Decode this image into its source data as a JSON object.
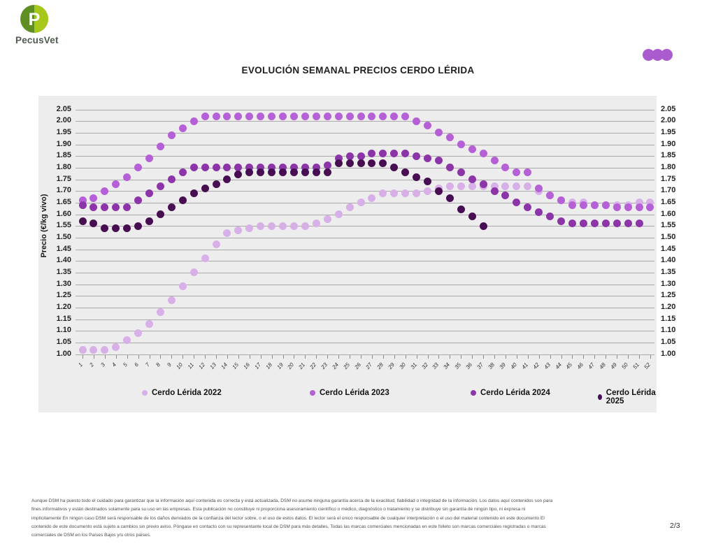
{
  "header": {
    "brand": "PecusVet"
  },
  "title": "EVOLUCIÓN SEMANAL PRECIOS CERDO LÉRIDA",
  "chart_data": {
    "type": "scatter",
    "title": "EVOLUCIÓN SEMANAL PRECIOS CERDO LÉRIDA",
    "xlabel": "",
    "ylabel": "Precio (€/kg vivo)",
    "ylim": [
      1.0,
      2.05
    ],
    "yticks": [
      "2.05",
      "2.00",
      "1.95",
      "1.90",
      "1.85",
      "1.80",
      "1.75",
      "1.70",
      "1.65",
      "1.60",
      "1.55",
      "1.50",
      "1.45",
      "1.40",
      "1.35",
      "1.30",
      "1.25",
      "1.20",
      "1.15",
      "1.10",
      "1.05",
      "1.00"
    ],
    "grid": true,
    "legend_position": "bottom",
    "x": [
      1,
      2,
      3,
      4,
      5,
      6,
      7,
      8,
      9,
      10,
      11,
      12,
      13,
      14,
      15,
      16,
      17,
      18,
      19,
      20,
      21,
      22,
      23,
      24,
      25,
      26,
      27,
      28,
      29,
      30,
      31,
      32,
      33,
      34,
      35,
      36,
      37,
      38,
      39,
      40,
      41,
      42,
      43,
      44,
      45,
      46,
      47,
      48,
      49,
      50,
      51,
      52
    ],
    "series": [
      {
        "name": "Cerdo Lérida 2022",
        "color": "#d8b0e8",
        "values": [
          1.02,
          1.02,
          1.02,
          1.03,
          1.06,
          1.09,
          1.13,
          1.18,
          1.23,
          1.29,
          1.35,
          1.41,
          1.47,
          1.52,
          1.53,
          1.54,
          1.55,
          1.55,
          1.55,
          1.55,
          1.55,
          1.56,
          1.58,
          1.6,
          1.63,
          1.65,
          1.67,
          1.69,
          1.69,
          1.69,
          1.69,
          1.7,
          1.71,
          1.72,
          1.72,
          1.72,
          1.72,
          1.72,
          1.72,
          1.72,
          1.72,
          1.7,
          1.68,
          1.66,
          1.65,
          1.65,
          1.64,
          1.64,
          1.64,
          1.64,
          1.65,
          1.65
        ]
      },
      {
        "name": "Cerdo Lérida 2023",
        "color": "#b560d6",
        "values": [
          1.66,
          1.67,
          1.7,
          1.73,
          1.76,
          1.8,
          1.84,
          1.89,
          1.94,
          1.97,
          2.0,
          2.02,
          2.02,
          2.02,
          2.02,
          2.02,
          2.02,
          2.02,
          2.02,
          2.02,
          2.02,
          2.02,
          2.02,
          2.02,
          2.02,
          2.02,
          2.02,
          2.02,
          2.02,
          2.02,
          2.0,
          1.98,
          1.95,
          1.93,
          1.9,
          1.88,
          1.86,
          1.83,
          1.8,
          1.78,
          1.78,
          1.71,
          1.68,
          1.66,
          1.64,
          1.64,
          1.64,
          1.64,
          1.63,
          1.63,
          1.63,
          1.63
        ]
      },
      {
        "name": "Cerdo Lérida 2024",
        "color": "#8c35a8",
        "values": [
          1.64,
          1.63,
          1.63,
          1.63,
          1.63,
          1.66,
          1.69,
          1.72,
          1.75,
          1.78,
          1.8,
          1.8,
          1.8,
          1.8,
          1.8,
          1.8,
          1.8,
          1.8,
          1.8,
          1.8,
          1.8,
          1.8,
          1.81,
          1.84,
          1.85,
          1.85,
          1.86,
          1.86,
          1.86,
          1.86,
          1.85,
          1.84,
          1.83,
          1.8,
          1.78,
          1.75,
          1.73,
          1.7,
          1.68,
          1.65,
          1.63,
          1.61,
          1.59,
          1.57,
          1.56,
          1.56,
          1.56,
          1.56,
          1.56,
          1.56,
          1.56,
          null
        ]
      },
      {
        "name": "Cerdo Lérida 2025",
        "color": "#470f52",
        "values": [
          1.57,
          1.56,
          1.54,
          1.54,
          1.54,
          1.55,
          1.57,
          1.6,
          1.63,
          1.66,
          1.69,
          1.71,
          1.73,
          1.75,
          1.77,
          1.78,
          1.78,
          1.78,
          1.78,
          1.78,
          1.78,
          1.78,
          1.78,
          1.82,
          1.82,
          1.82,
          1.82,
          1.82,
          1.8,
          1.78,
          1.76,
          1.74,
          1.7,
          1.67,
          1.62,
          1.59,
          1.55,
          null,
          null,
          null,
          null,
          null,
          null,
          null,
          null,
          null,
          null,
          null,
          null,
          null,
          null,
          null
        ]
      }
    ]
  },
  "footer": {
    "lines": [
      "Aunque DSM ha puesto todo el cuidado para garantizar que la información aquí contenida es correcta y está actualizada, DSM no asume ninguna garantía acerca de la exactitud, fiabilidad o integridad de la información. Los datos aquí contenidos son para",
      "fines informativos y están destinados solamente para su uso en las empresas. Esta publicación no constituye ni proporciona asesoramiento científico o médico, diagnóstico o tratamiento y se distribuye sin garantía de ningún tipo, ni expresa ni",
      "implícitamente En ningún caso DSM será responsable de los daños derivados de la confianza del lector sobre, o el uso de estos datos. El lector será el único responsable de cualquier interpretación o el uso del material contenido en este documento El",
      "contenido de este documento está sujeto a cambios sin previo aviso. Póngase en contacto con su representante local de DSM para más detalles. Todas las marcas comerciales mencionadas en este folleto son marcas comerciales registradas o marcas",
      "comerciales de DSM en los Países Bajos y/u otros países."
    ],
    "page": "2/3"
  }
}
